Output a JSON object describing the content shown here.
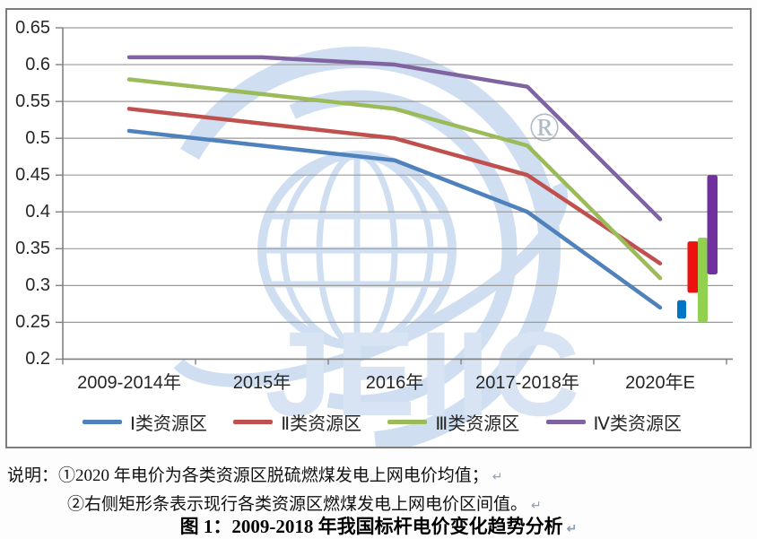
{
  "chart_data": {
    "type": "line",
    "categories": [
      "2009-2014年",
      "2015年",
      "2016年",
      "2017-2018年",
      "2020年E"
    ],
    "series": [
      {
        "name": "Ⅰ类资源区",
        "color": "#4F81BD",
        "values": [
          0.51,
          0.49,
          0.47,
          0.4,
          0.27
        ]
      },
      {
        "name": "Ⅱ类资源区",
        "color": "#C0504D",
        "values": [
          0.54,
          0.52,
          0.5,
          0.45,
          0.33
        ]
      },
      {
        "name": "Ⅲ类资源区",
        "color": "#9BBB59",
        "values": [
          0.58,
          0.56,
          0.54,
          0.49,
          0.31
        ]
      },
      {
        "name": "Ⅳ类资源区",
        "color": "#8064A2",
        "values": [
          0.61,
          0.61,
          0.6,
          0.57,
          0.39
        ]
      }
    ],
    "range_bars": [
      {
        "name": "Ⅰ类资源区燃煤电价区间",
        "color": "#0074C6",
        "low": 0.255,
        "high": 0.28
      },
      {
        "name": "Ⅱ类资源区燃煤电价区间",
        "color": "#EE1111",
        "low": 0.29,
        "high": 0.36
      },
      {
        "name": "Ⅲ类资源区燃煤电价区间",
        "color": "#92D050",
        "low": 0.25,
        "high": 0.365
      },
      {
        "name": "Ⅳ类资源区燃煤电价区间",
        "color": "#7030A0",
        "low": 0.315,
        "high": 0.45
      }
    ],
    "ylim": [
      0.2,
      0.65
    ],
    "ytick_step": 0.05,
    "yticks": [
      "0.65",
      "0.6",
      "0.55",
      "0.5",
      "0.45",
      "0.4",
      "0.35",
      "0.3",
      "0.25",
      "0.2"
    ],
    "grid": true,
    "legend_position": "bottom"
  },
  "watermark": {
    "logo_text": "JEIIC",
    "registered_mark": "®"
  },
  "notes": {
    "label": "说明：",
    "line1": "①2020 年电价为各类资源区脱硫燃煤发电上网电价均值；",
    "line2": "②右侧矩形条表示现行各类资源区燃煤发电上网电价区间值。"
  },
  "caption": "图 1：2009-2018 年我国标杆电价变化趋势分析",
  "paragraph_mark": "↵",
  "colors": {
    "frame_border": "#7d7d7d",
    "gridline": "#9a9a9a",
    "axis": "#808080",
    "watermark_blue": "#c7d9ef",
    "watermark_text": "#d2e0f3",
    "registered_gray": "#b0b9c6"
  }
}
